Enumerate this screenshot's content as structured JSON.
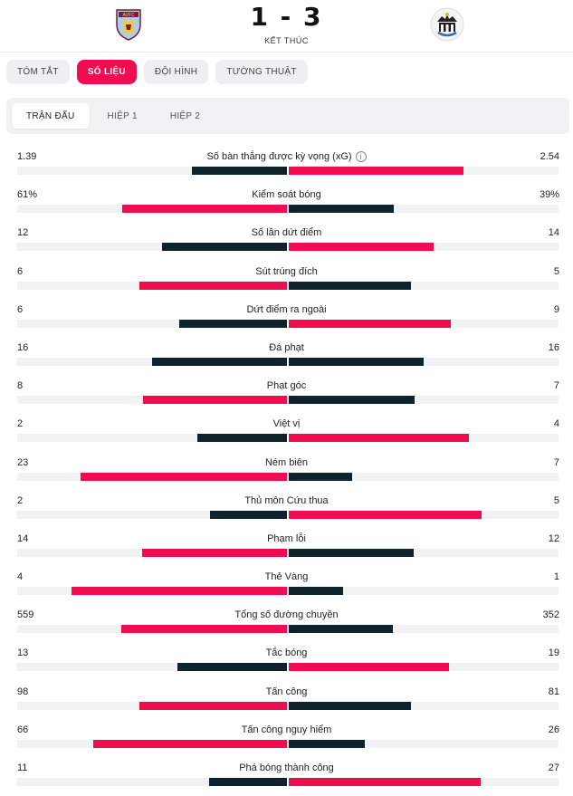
{
  "match": {
    "home_crest_text": "AVFC",
    "score": "1 - 3",
    "status": "KẾT THÚC"
  },
  "tabs": [
    {
      "label": "TÓM TẮT",
      "active": false
    },
    {
      "label": "SỐ LIỆU",
      "active": true
    },
    {
      "label": "ĐỘI HÌNH",
      "active": false
    },
    {
      "label": "TƯỜNG THUẬT",
      "active": false
    }
  ],
  "subtabs": [
    {
      "label": "TRẬN ĐẤU",
      "active": true
    },
    {
      "label": "HIỆP 1",
      "active": false
    },
    {
      "label": "HIỆP 2",
      "active": false
    }
  ],
  "colors": {
    "accent": "#ef0d4f",
    "dark": "#0f232c",
    "track": "#f1f2f4"
  },
  "stats": [
    {
      "label": "Số bàn thắng được kỳ vọng (xG)",
      "home": "1.39",
      "away": "2.54",
      "home_val": 1.39,
      "away_val": 2.54,
      "info": true
    },
    {
      "label": "Kiểm soát bóng",
      "home": "61%",
      "away": "39%",
      "home_val": 61,
      "away_val": 39
    },
    {
      "label": "Số lần dứt điểm",
      "home": "12",
      "away": "14",
      "home_val": 12,
      "away_val": 14
    },
    {
      "label": "Sút trúng đích",
      "home": "6",
      "away": "5",
      "home_val": 6,
      "away_val": 5
    },
    {
      "label": "Dứt điểm ra ngoài",
      "home": "6",
      "away": "9",
      "home_val": 6,
      "away_val": 9
    },
    {
      "label": "Đá phạt",
      "home": "16",
      "away": "16",
      "home_val": 16,
      "away_val": 16
    },
    {
      "label": "Phạt góc",
      "home": "8",
      "away": "7",
      "home_val": 8,
      "away_val": 7
    },
    {
      "label": "Việt vị",
      "home": "2",
      "away": "4",
      "home_val": 2,
      "away_val": 4
    },
    {
      "label": "Ném biên",
      "home": "23",
      "away": "7",
      "home_val": 23,
      "away_val": 7
    },
    {
      "label": "Thủ môn Cứu thua",
      "home": "2",
      "away": "5",
      "home_val": 2,
      "away_val": 5
    },
    {
      "label": "Phạm lỗi",
      "home": "14",
      "away": "12",
      "home_val": 14,
      "away_val": 12
    },
    {
      "label": "Thẻ Vàng",
      "home": "4",
      "away": "1",
      "home_val": 4,
      "away_val": 1
    },
    {
      "label": "Tổng số đường chuyền",
      "home": "559",
      "away": "352",
      "home_val": 559,
      "away_val": 352
    },
    {
      "label": "Tắc bóng",
      "home": "13",
      "away": "19",
      "home_val": 13,
      "away_val": 19
    },
    {
      "label": "Tấn công",
      "home": "98",
      "away": "81",
      "home_val": 98,
      "away_val": 81
    },
    {
      "label": "Tấn công nguy hiểm",
      "home": "66",
      "away": "26",
      "home_val": 66,
      "away_val": 26
    },
    {
      "label": "Phá bóng thành công",
      "home": "11",
      "away": "27",
      "home_val": 11,
      "away_val": 27
    }
  ]
}
